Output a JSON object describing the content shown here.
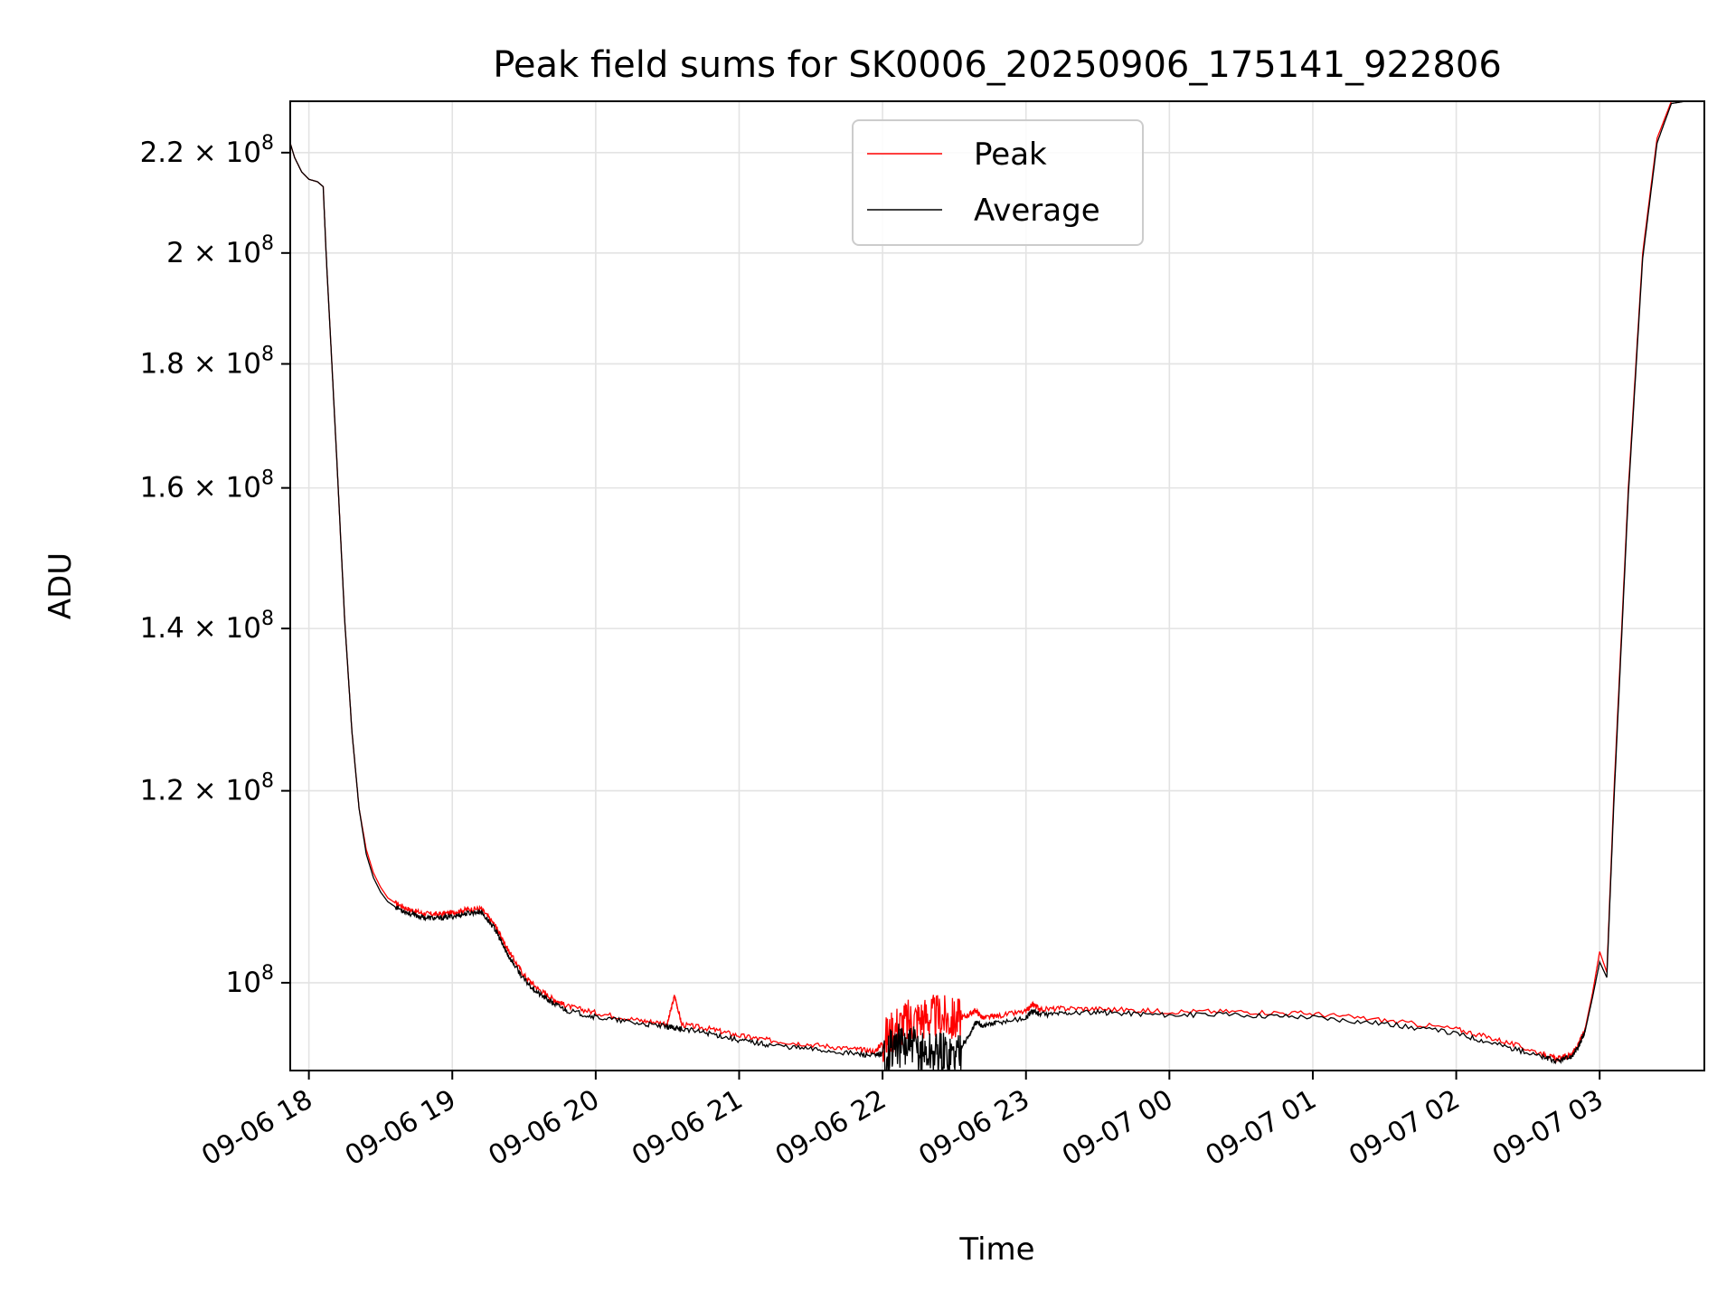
{
  "chart_data": {
    "type": "line",
    "title": "Peak field sums for SK0006_20250906_175141_922806",
    "xlabel": "Time",
    "ylabel": "ADU",
    "y_scale": "log",
    "ylim": [
      92000000,
      231000000
    ],
    "xlim_hours": [
      -0.13,
      9.73
    ],
    "x_tick_labels": [
      "09-06 18",
      "09-06 19",
      "09-06 20",
      "09-06 21",
      "09-06 22",
      "09-06 23",
      "09-07 00",
      "09-07 01",
      "09-07 02",
      "09-07 03"
    ],
    "x_tick_hours": [
      0,
      1,
      2,
      3,
      4,
      5,
      6,
      7,
      8,
      9
    ],
    "y_ticks": [
      {
        "value": 100000000,
        "mantissa": "",
        "exp": "8"
      },
      {
        "value": 120000000,
        "mantissa": "1.2",
        "exp": "8"
      },
      {
        "value": 140000000,
        "mantissa": "1.4",
        "exp": "8"
      },
      {
        "value": 160000000,
        "mantissa": "1.6",
        "exp": "8"
      },
      {
        "value": 180000000,
        "mantissa": "1.8",
        "exp": "8"
      },
      {
        "value": 200000000,
        "mantissa": "2",
        "exp": "8"
      },
      {
        "value": 220000000,
        "mantissa": "2.2",
        "exp": "8"
      }
    ],
    "grid": true,
    "legend_position": "top-center",
    "series": [
      {
        "name": "Peak",
        "color": "#ff0000"
      },
      {
        "name": "Average",
        "color": "#000000"
      }
    ],
    "x_hours": [
      -0.13,
      -0.1,
      -0.05,
      0.0,
      0.06,
      0.1,
      0.12,
      0.15,
      0.2,
      0.25,
      0.3,
      0.35,
      0.4,
      0.45,
      0.5,
      0.55,
      0.6,
      0.7,
      0.8,
      0.9,
      1.0,
      1.1,
      1.2,
      1.3,
      1.35,
      1.4,
      1.5,
      1.6,
      1.7,
      1.8,
      2.0,
      2.3,
      2.5,
      2.55,
      2.6,
      2.8,
      3.0,
      3.2,
      3.5,
      3.8,
      3.95,
      4.0,
      4.1,
      4.2,
      4.3,
      4.4,
      4.5,
      4.6,
      4.65,
      4.7,
      4.8,
      5.0,
      5.05,
      5.1,
      5.3,
      5.6,
      6.0,
      6.5,
      7.0,
      7.5,
      8.0,
      8.3,
      8.6,
      8.7,
      8.8,
      8.85,
      8.9,
      8.95,
      9.0,
      9.05,
      9.1,
      9.2,
      9.3,
      9.4,
      9.5,
      9.6,
      9.73
    ],
    "peak_values": [
      222000000,
      219000000,
      216000000,
      214500000,
      214000000,
      213000000,
      200000000,
      185000000,
      162000000,
      141000000,
      127000000,
      118000000,
      113500000,
      111000000,
      109500000,
      108400000,
      107900000,
      107200000,
      106800000,
      106700000,
      106900000,
      107200000,
      107300000,
      105600000,
      104200000,
      102900000,
      100700000,
      99400000,
      98500000,
      97800000,
      97200000,
      96500000,
      96200000,
      98800000,
      96100000,
      95700000,
      95100000,
      94700000,
      94300000,
      93900000,
      93700000,
      94500000,
      96000000,
      96500000,
      96800000,
      96800000,
      96500000,
      97000000,
      97400000,
      96700000,
      96900000,
      97300000,
      98000000,
      97500000,
      97600000,
      97500000,
      97300000,
      97300000,
      97100000,
      96500000,
      95700000,
      94700000,
      93500000,
      93000000,
      93400000,
      94200000,
      95800000,
      99000000,
      103000000,
      101000000,
      120000000,
      160000000,
      200000000,
      223000000,
      231000000,
      231000000,
      231000000
    ],
    "average_values": [
      222000000,
      219000000,
      216000000,
      214500000,
      214000000,
      213000000,
      200000000,
      185000000,
      162000000,
      141000000,
      127000000,
      118000000,
      113000000,
      110500000,
      109000000,
      108000000,
      107500000,
      106800000,
      106400000,
      106300000,
      106500000,
      106800000,
      107000000,
      105200000,
      103700000,
      102400000,
      100300000,
      99000000,
      98100000,
      97400000,
      96800000,
      96200000,
      95900000,
      95800000,
      95700000,
      95300000,
      94700000,
      94300000,
      93900000,
      93500000,
      93300000,
      93500000,
      94200000,
      94000000,
      93500000,
      93600000,
      93400000,
      95000000,
      96300000,
      96000000,
      96300000,
      96700000,
      97400000,
      97000000,
      97200000,
      97200000,
      97000000,
      97000000,
      96800000,
      96200000,
      95300000,
      94300000,
      93200000,
      92800000,
      93200000,
      94000000,
      95600000,
      98600000,
      102000000,
      100500000,
      119000000,
      159000000,
      199000000,
      222000000,
      230500000,
      231000000,
      231000000
    ]
  }
}
